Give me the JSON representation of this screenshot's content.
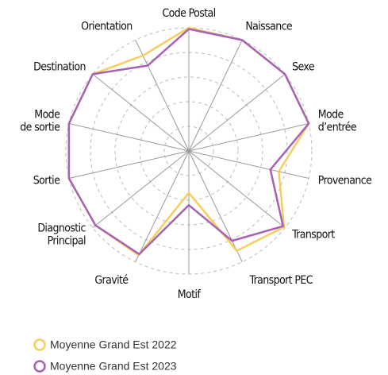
{
  "chart_data": {
    "type": "radar",
    "categories": [
      [
        "Code Postal"
      ],
      [
        "Naissance"
      ],
      [
        "Sexe"
      ],
      [
        "Mode",
        "d’entrée"
      ],
      [
        "Provenance"
      ],
      [
        "Transport"
      ],
      [
        "Transport PEC"
      ],
      [
        "Motif"
      ],
      [
        "Gravité"
      ],
      [
        "Diagnostic",
        "Principal"
      ],
      [
        "Sortie"
      ],
      [
        "Mode",
        "de sortie"
      ],
      [
        "Destination"
      ],
      [
        "Orientation"
      ]
    ],
    "series": [
      {
        "name": "Moyenne Grand Est 2022",
        "color": "#f7cd5e",
        "values": [
          100,
          100,
          100,
          100,
          75,
          99,
          90,
          34,
          94,
          97,
          100,
          100,
          100,
          86
        ]
      },
      {
        "name": "Moyenne Grand Est 2023",
        "color": "#a862b5",
        "values": [
          99,
          100,
          100,
          100,
          68,
          98,
          81,
          44,
          93,
          97,
          100,
          100,
          100,
          77
        ]
      }
    ],
    "rlim": [
      0,
      100
    ],
    "rticks": [
      20,
      40,
      60,
      80,
      100
    ],
    "grid": true
  }
}
